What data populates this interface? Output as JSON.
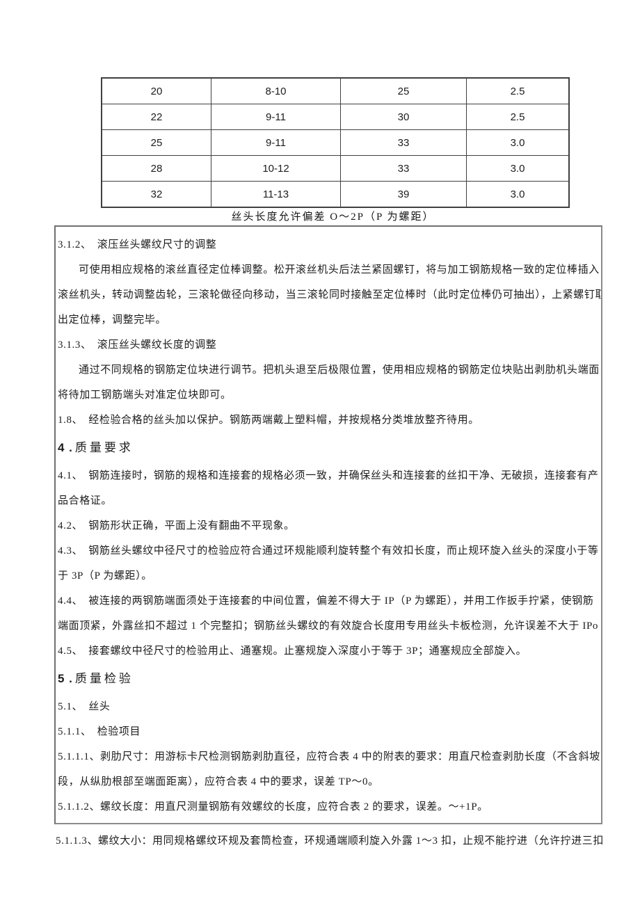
{
  "table": {
    "rows": [
      [
        "20",
        "8-10",
        "25",
        "2.5"
      ],
      [
        "22",
        "9-11",
        "30",
        "2.5"
      ],
      [
        "25",
        "9-11",
        "33",
        "3.0"
      ],
      [
        "28",
        "10-12",
        "33",
        "3.0"
      ],
      [
        "32",
        "11-13",
        "39",
        "3.0"
      ]
    ]
  },
  "caption": "丝头长度允许偏差 O～2P（P 为螺距）",
  "box": {
    "lines": [
      {
        "kind": "item",
        "text": "3.1.2、　滚压丝头螺纹尺寸的调整"
      },
      {
        "kind": "indent",
        "text": "可使用相应规格的滚丝直径定位棒调整。松开滚丝机头后法兰紧固螺钉，将与加工钢筋规格一致的定位棒插入"
      },
      {
        "kind": "cont",
        "text": "滚丝机头，转动调整齿轮，三滚轮做径向移动，当三滚轮同时接触至定位棒时（此时定位棒仍可抽出），上紧螺钉取"
      },
      {
        "kind": "cont",
        "text": "出定位棒，调整完毕。"
      },
      {
        "kind": "item",
        "text": "3.1.3、　滚压丝头螺纹长度的调整"
      },
      {
        "kind": "indent",
        "text": "通过不同规格的钢筋定位块进行调节。把机头退至后极限位置，使用相应规格的钢筋定位块贴出剥肋机头端面，"
      },
      {
        "kind": "cont",
        "text": "将待加工钢筋端头对准定位块即可。"
      },
      {
        "kind": "item",
        "text": "1.8、　经检验合格的丝头加以保护。钢筋两端戴上塑料帽，并按规格分类堆放整齐待用。"
      },
      {
        "kind": "heading",
        "num": "4 .",
        "text": "质量要求"
      },
      {
        "kind": "item",
        "text": "4.1、　钢筋连接时，钢筋的规格和连接套的规格必须一致，并确保丝头和连接套的丝扣干净、无破损，连接套有产"
      },
      {
        "kind": "cont",
        "text": "品合格证。"
      },
      {
        "kind": "item",
        "text": "4.2、　钢筋形状正确，平面上没有翻曲不平现象。"
      },
      {
        "kind": "item",
        "text": "4.3、　钢筋丝头螺纹中径尺寸的检验应符合通过环规能顺利旋转整个有效扣长度，而止规环旋入丝头的深度小于等"
      },
      {
        "kind": "cont",
        "text": "于 3P（P 为螺距）。"
      },
      {
        "kind": "item",
        "text": "4.4、　被连接的两钢筋端面须处于连接套的中间位置，偏差不得大于 IP（P 为螺距），并用工作扳手拧紧，使钢筋"
      },
      {
        "kind": "cont",
        "text": "端面顶紧，外露丝扣不超过 1 个完整扣；钢筋丝头螺纹的有效旋合长度用专用丝头卡板检测，允许误差不大于 IPo"
      },
      {
        "kind": "item",
        "text": "4.5、　接套螺纹中径尺寸的检验用止、通塞规。止塞规旋入深度小于等于 3P；通塞规应全部旋入。"
      },
      {
        "kind": "heading",
        "num": "5 .",
        "text": "质量检验"
      },
      {
        "kind": "item",
        "text": "5.1、　丝头"
      },
      {
        "kind": "item",
        "text": "5.1.1、　检验项目"
      },
      {
        "kind": "item",
        "text": "5.1.1.1、剥肋尺寸：用游标卡尺检测钢筋剥肋直径，应符合表 4 中的附表的要求：用直尺检查剥肋长度（不含斜坡"
      },
      {
        "kind": "cont",
        "text": "段，从纵肋根部至端面距离），应符合表 4 中的要求，误差 TP～0。"
      },
      {
        "kind": "item",
        "text": "5.1.1.2、螺纹长度：用直尺测量钢筋有效螺纹的长度，应符合表 2 的要求，误差。～+1P。"
      }
    ]
  },
  "footer_line": "5.1.1.3、螺纹大小：用同规格螺纹环规及套筒检查，环规通端顺利旋入外露 1～3 扣，止规不能拧进（允许拧进三扣"
}
